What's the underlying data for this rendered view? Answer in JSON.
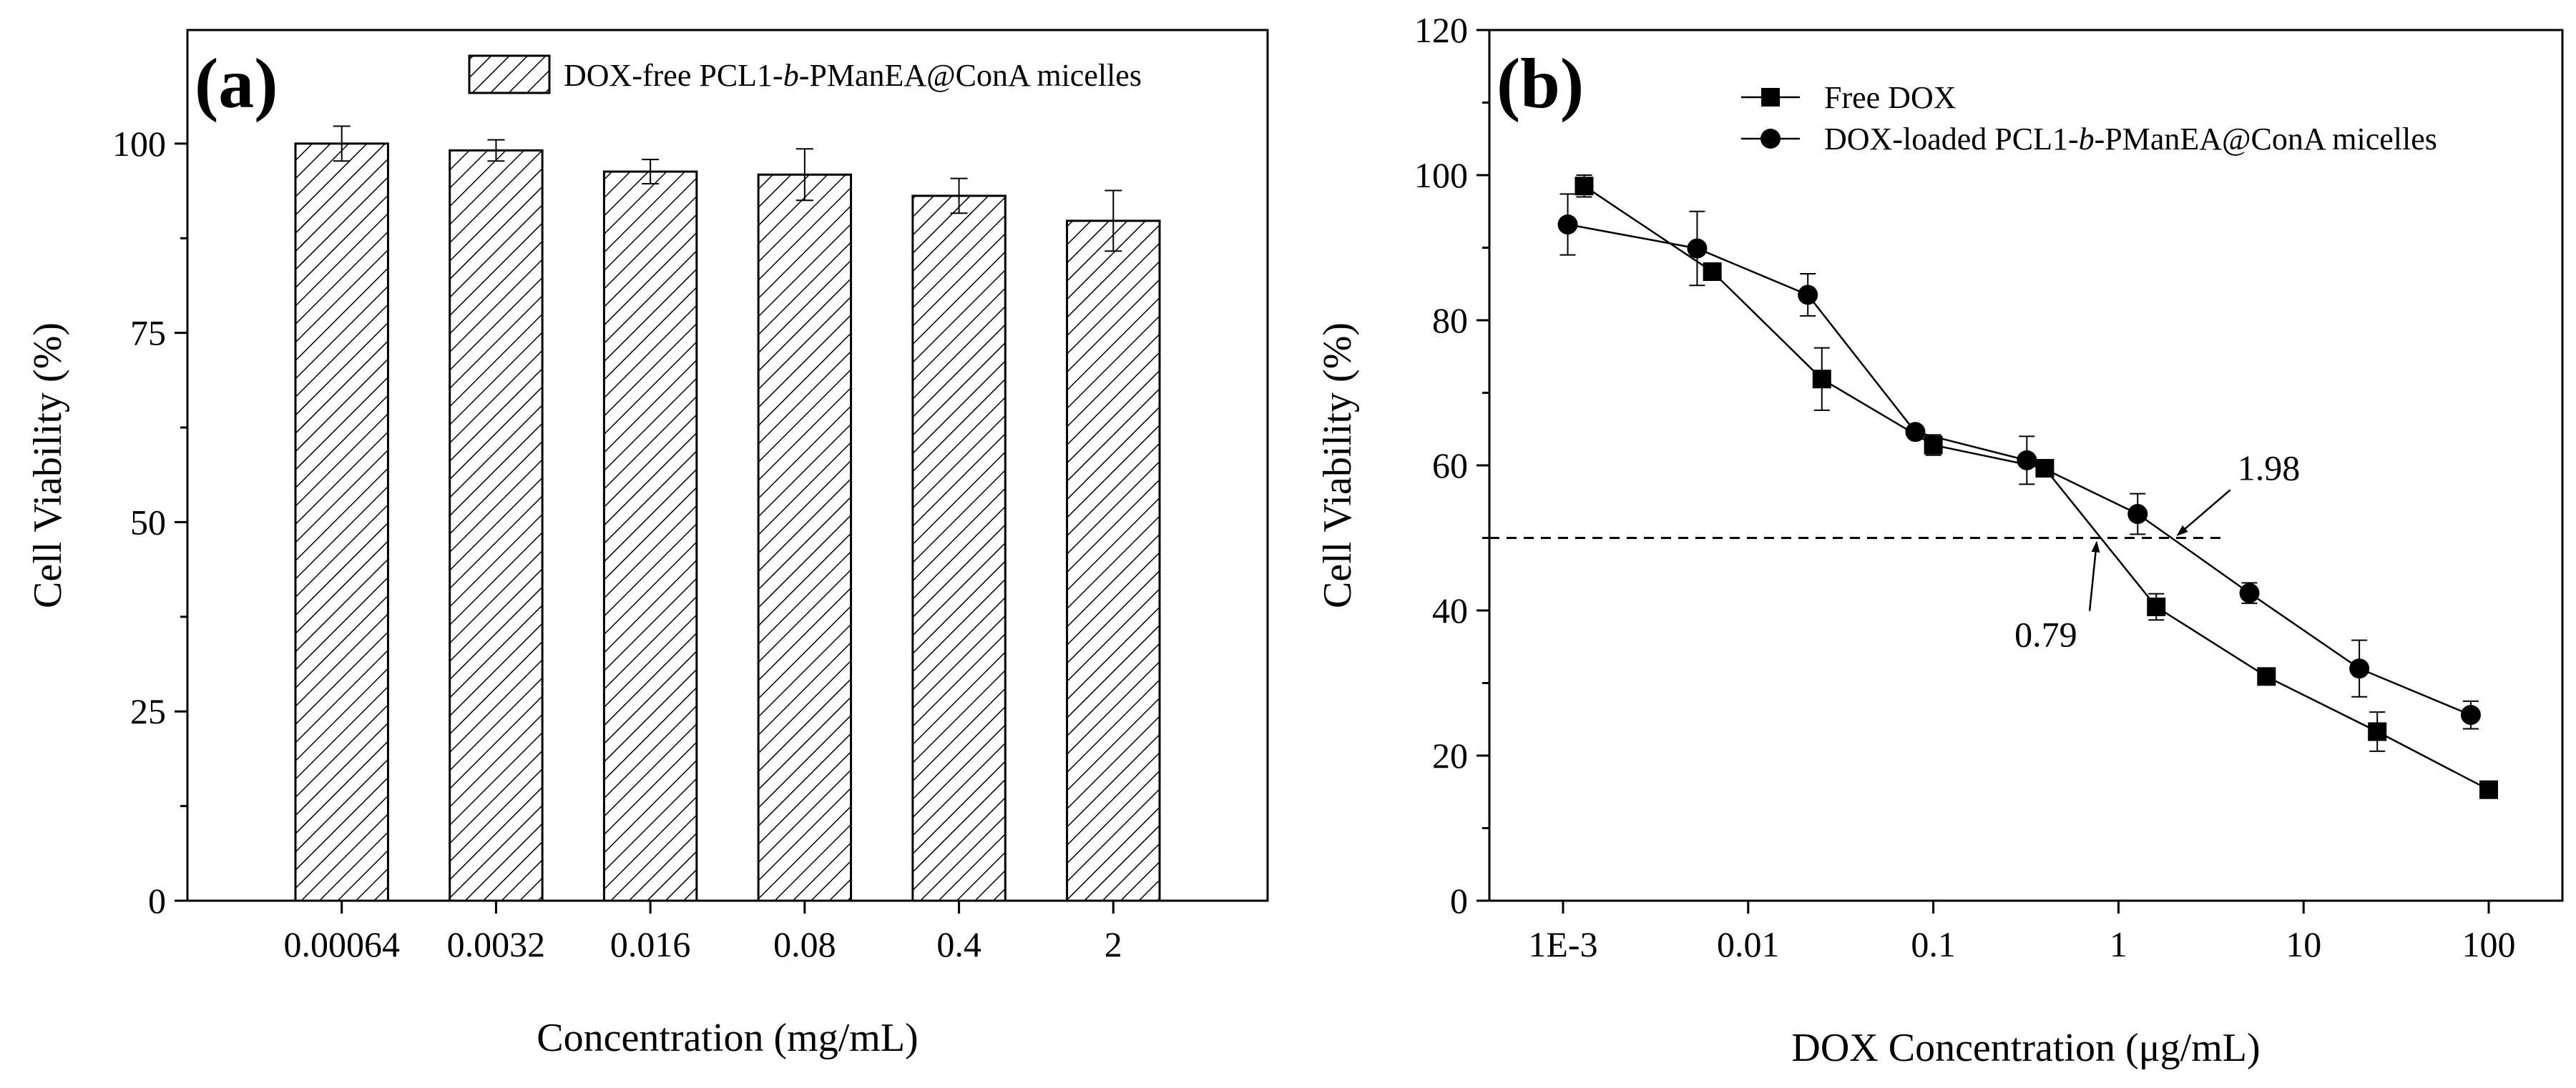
{
  "chart_data": [
    {
      "panel_label": "(a)",
      "type": "bar",
      "categories": [
        "0.00064",
        "0.0032",
        "0.016",
        "0.08",
        "0.4",
        "2"
      ],
      "values": [
        100,
        99.1,
        96.3,
        95.9,
        93.1,
        89.8
      ],
      "errors": [
        2.3,
        1.4,
        1.6,
        3.4,
        2.3,
        4.0
      ],
      "xlabel": "Concentration (mg/mL)",
      "ylabel": "Cell Viability (%)",
      "ylim": [
        0,
        115
      ],
      "yticks": [
        0,
        25,
        50,
        75,
        100
      ],
      "legend": {
        "label_before": "DOX-free PCL1-",
        "label_italic": "b",
        "label_after": "-PManEA@ConA micelles",
        "position": "top-right"
      },
      "fill_pattern": "diagonal hatch",
      "bar_stroke_color": "#000000",
      "hatch_color": "#000000"
    },
    {
      "panel_label": "(b)",
      "type": "line",
      "xscale": "log",
      "xlim": [
        0.0004,
        250
      ],
      "ylim": [
        0,
        120
      ],
      "xticks": [
        0.001,
        0.01,
        0.1,
        1,
        10,
        100
      ],
      "xtick_labels": [
        "1E-3",
        "0.01",
        "0.1",
        "1",
        "10",
        "100"
      ],
      "yticks": [
        0,
        20,
        40,
        60,
        80,
        100,
        120
      ],
      "xlabel": "DOX Concentration (μg/mL)",
      "ylabel": "Cell Viability (%)",
      "series": [
        {
          "name": "Free DOX",
          "marker": "square",
          "x": [
            0.0013,
            0.0064,
            0.025,
            0.1,
            0.4,
            1.6,
            6.3,
            25,
            100
          ],
          "y": [
            98.5,
            86.7,
            71.9,
            62.8,
            59.6,
            40.5,
            30.9,
            23.3,
            15.3
          ],
          "errors": [
            1.5,
            0.8,
            4.3,
            1.4,
            0.8,
            1.8,
            0.8,
            2.7,
            0.5
          ]
        },
        {
          "name_before": "DOX-loaded PCL1-",
          "name_italic": "b",
          "name_after": "-PManEA@ConA micelles",
          "marker": "circle",
          "x": [
            0.00106,
            0.0053,
            0.021,
            0.08,
            0.32,
            1.27,
            5.1,
            20,
            80
          ],
          "y": [
            93.2,
            89.9,
            83.5,
            64.6,
            60.7,
            53.3,
            42.4,
            32.0,
            25.6
          ],
          "errors": [
            4.2,
            5.1,
            2.9,
            0.6,
            3.3,
            2.8,
            1.4,
            3.9,
            1.9
          ]
        }
      ],
      "legend_position": "top-left",
      "reference_line": {
        "y": 50,
        "style": "dashed",
        "x_end": 3.7
      },
      "annotations": [
        {
          "text": "1.98",
          "arrow_to_x": 1.98,
          "arrow_to_y": 50,
          "text_x": 4.8,
          "text_y": 58
        },
        {
          "text": "0.79",
          "arrow_to_x": 0.79,
          "arrow_to_y": 50,
          "text_x": 0.3,
          "text_y": 36
        }
      ]
    }
  ]
}
